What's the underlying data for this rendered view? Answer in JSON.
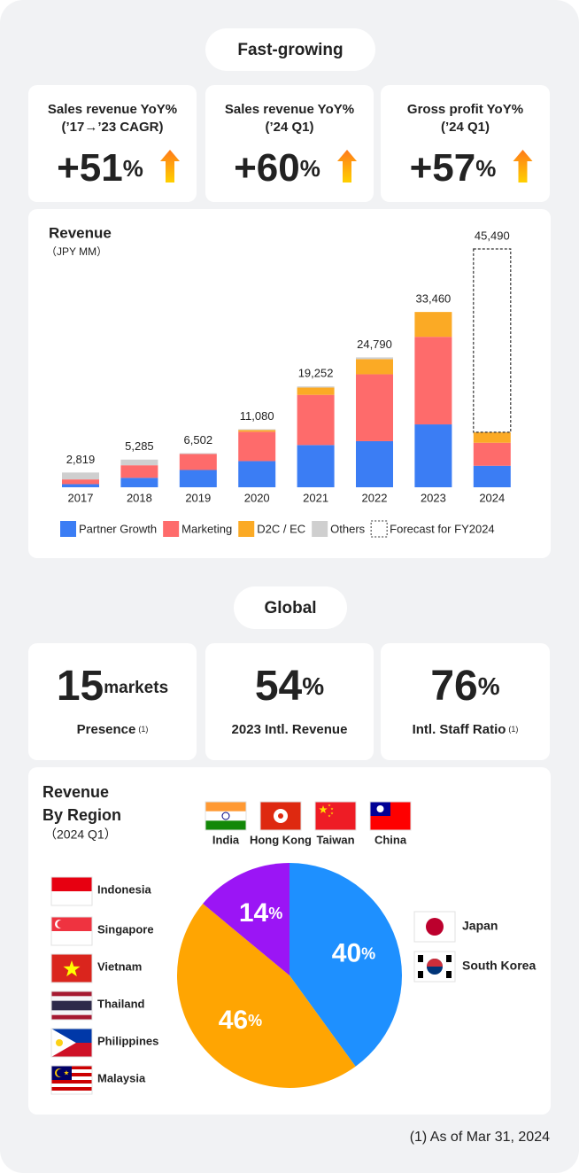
{
  "fast_growing": {
    "badge": "Fast-growing",
    "cards": [
      {
        "label": [
          "Sales revenue YoY%",
          "(’17→’23 CAGR)"
        ],
        "value": "+51",
        "unit": "%"
      },
      {
        "label": [
          "Sales revenue YoY%",
          "(’24 Q1)"
        ],
        "value": "+60",
        "unit": "%"
      },
      {
        "label": [
          "Gross profit YoY%",
          "(’24 Q1)"
        ],
        "value": "+57",
        "unit": "%"
      }
    ]
  },
  "chart_data": [
    {
      "type": "bar",
      "stacked": true,
      "title": "Revenue",
      "subtitle": "（JPY MM）",
      "categories": [
        "2017",
        "2018",
        "2019",
        "2020",
        "2021",
        "2022",
        "2023",
        "2024"
      ],
      "series": [
        {
          "name": "Partner Growth",
          "color": "#3b7df4",
          "values": [
            600,
            1800,
            3300,
            5000,
            8060,
            8800,
            12000,
            4100
          ]
        },
        {
          "name": "Marketing",
          "color": "#fe6b6b",
          "values": [
            900,
            2400,
            3050,
            5600,
            9580,
            12770,
            16720,
            4400
          ]
        },
        {
          "name": "D2C / EC",
          "color": "#fbaa25",
          "values": [
            null,
            null,
            null,
            330,
            1400,
            2900,
            4740,
            2000
          ]
        },
        {
          "name": "Others",
          "color": "#cfcfcf",
          "values": [
            1319,
            1085,
            152,
            150,
            212,
            320,
            null,
            null
          ]
        },
        {
          "name": "Forecast for FY2024",
          "color": "#333333",
          "dashed": true,
          "values": [
            null,
            null,
            null,
            null,
            null,
            null,
            null,
            34990
          ]
        }
      ],
      "totals": [
        2819,
        5285,
        6502,
        11080,
        19252,
        24790,
        33460,
        45490
      ],
      "total_labels": [
        "2,819",
        "5,285",
        "6,502",
        "11,080",
        "19,252",
        "24,790",
        "33,460",
        "45,490"
      ]
    },
    {
      "type": "pie",
      "title": [
        "Revenue",
        "By Region"
      ],
      "subtitle": "（2024 Q1）",
      "values": [
        40,
        46,
        14
      ],
      "value_unit": "%",
      "colors": [
        "#1e90ff",
        "#ffa502",
        "#9b15f5"
      ]
    }
  ],
  "global": {
    "badge": "Global",
    "cards": [
      {
        "value": "15",
        "unit": "markets",
        "label": "Presence",
        "note": "(1)"
      },
      {
        "value": "54",
        "unit": "%",
        "label": "2023 Intl. Revenue"
      },
      {
        "value": "76",
        "unit": "%",
        "label": "Intl. Staff Ratio",
        "note": "(1)"
      }
    ]
  },
  "region_flags": {
    "top": [
      "India",
      "Hong Kong",
      "Taiwan",
      "China"
    ],
    "left": [
      "Indonesia",
      "Singapore",
      "Vietnam",
      "Thailand",
      "Philippines",
      "Malaysia"
    ],
    "right": [
      "Japan",
      "South Korea"
    ]
  },
  "footnote": "(1) As of Mar 31, 2024"
}
